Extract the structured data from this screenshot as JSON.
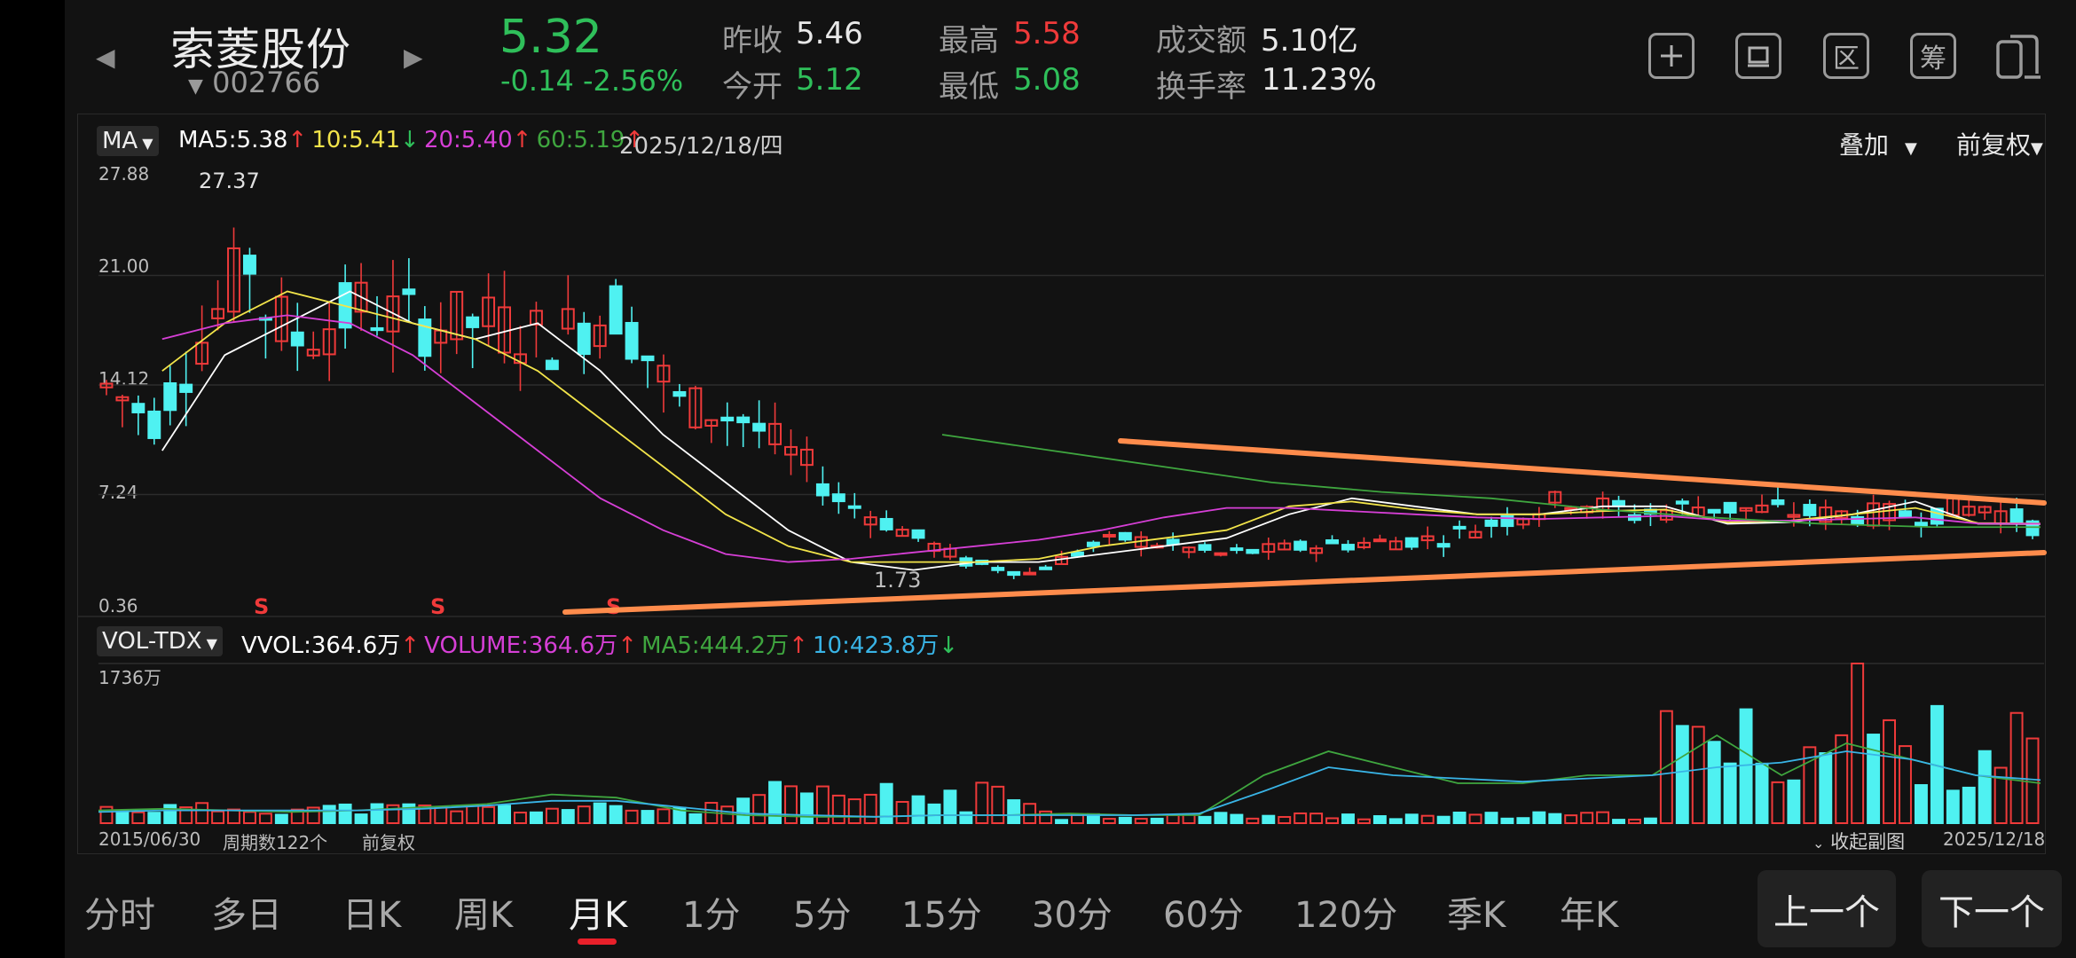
{
  "header": {
    "stock_name": "索菱股份",
    "stock_code": "002766",
    "price": "5.32",
    "change": "-0.14",
    "change_pct": "-2.56%",
    "prev_close_label": "昨收",
    "prev_close": "5.46",
    "open_label": "今开",
    "open": "5.12",
    "high_label": "最高",
    "high": "5.58",
    "low_label": "最低",
    "low": "5.08",
    "turnover_amt_label": "成交额",
    "turnover_amt": "5.10亿",
    "turnover_rate_label": "换手率",
    "turnover_rate": "11.23%"
  },
  "toolbar": {
    "icons": [
      "plus-icon",
      "draw-icon",
      "range-icon",
      "chip-icon",
      "screen-icon"
    ],
    "range_glyph": "区",
    "chip_glyph": "筹"
  },
  "main_chart": {
    "indicator": "MA",
    "ma5": "MA5:5.38",
    "ma10": "10:5.41",
    "ma20": "20:5.40",
    "ma60": "60:5.19",
    "date": "2025/12/18/四",
    "overlay": "叠加",
    "adjust": "前复权",
    "y_ticks": [
      "27.88",
      "21.00",
      "14.12",
      "7.24",
      "0.36"
    ],
    "max_label": "27.37",
    "min_label": "1.73",
    "sell_marker": "S",
    "colors": {
      "up": "#ef3a3a",
      "down": "#4ff1f1",
      "ma5": "#ffffff",
      "ma10": "#f2e44a",
      "ma20": "#d63fd6",
      "ma60": "#3fa63f",
      "trend": "#ff8c4c"
    }
  },
  "volume_chart": {
    "indicator": "VOL-TDX",
    "vvol": "VVOL:364.6万",
    "volume": "VOLUME:364.6万",
    "ma5": "MA5:444.2万",
    "ma10": "10:423.8万",
    "y_max": "1736万",
    "start_date": "2015/06/30",
    "period_count": "周期数122个",
    "adjust": "前复权",
    "collapse": "收起副图",
    "end_date": "2025/12/18"
  },
  "tabs": [
    "分时",
    "多日",
    "日K",
    "周K",
    "月K",
    "1分",
    "5分",
    "15分",
    "30分",
    "60分",
    "120分",
    "季K",
    "年K"
  ],
  "active_tab": "月K",
  "nav": {
    "prev": "上一个",
    "next": "下一个"
  },
  "chart_data": {
    "type": "line",
    "title": "",
    "x_range": [
      "2015/06/30",
      "2025/12/18"
    ],
    "periods": 122,
    "ylim": [
      0.36,
      27.88
    ],
    "series": [
      {
        "name": "MA5",
        "values": [
          10,
          16,
          18,
          20,
          18,
          17,
          18,
          15,
          11,
          8,
          5,
          3,
          2.5,
          3,
          3,
          3.5,
          4,
          4.5,
          6,
          7,
          6.5,
          6,
          6,
          6.5,
          6.5,
          5.4,
          5.5,
          6,
          6.8,
          5.4,
          5.38
        ]
      },
      {
        "name": "10",
        "values": [
          15,
          18,
          20,
          19,
          18,
          17,
          15,
          12,
          9,
          6,
          4,
          3,
          3,
          3,
          3.2,
          4,
          4.5,
          5,
          6.5,
          6.8,
          6.3,
          6,
          6,
          6.2,
          6.3,
          5.5,
          5.6,
          6,
          6.4,
          5.45,
          5.41
        ]
      },
      {
        "name": "20",
        "values": [
          17,
          18,
          18.5,
          18,
          16,
          13,
          10,
          7,
          5,
          3.5,
          3,
          3.2,
          3.6,
          4,
          4.4,
          5,
          5.8,
          6.4,
          6.4,
          6.2,
          6,
          5.8,
          5.7,
          5.8,
          5.9,
          5.6,
          5.6,
          5.7,
          5.8,
          5.42,
          5.4
        ]
      },
      {
        "name": "60",
        "values": [
          11,
          10,
          9,
          8,
          7.4,
          7,
          6.3,
          5.8,
          5.4,
          5.2,
          5.19
        ]
      }
    ]
  }
}
